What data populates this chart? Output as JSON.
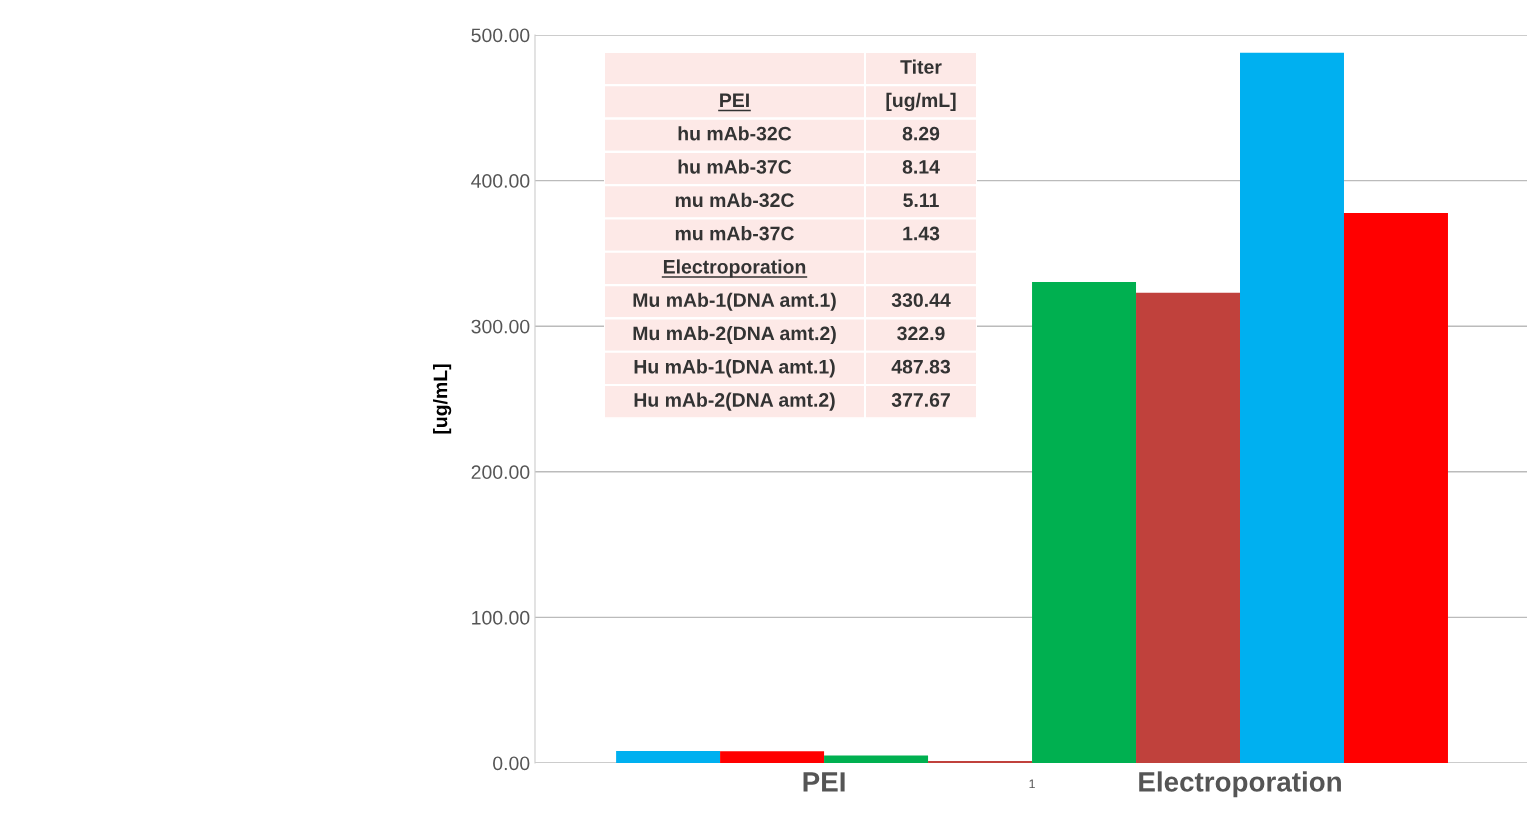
{
  "chart_data": [
    {
      "type": "bar",
      "ylabel": "[ug/mL]",
      "categories": [
        "PEI",
        "Electroporation"
      ],
      "series": [
        {
          "colors": [
            "#00b0f0",
            "#00b050"
          ],
          "values": [
            8.29,
            330.44
          ]
        },
        {
          "colors": [
            "#ff0000",
            "#c0413c"
          ],
          "values": [
            8.14,
            322.9
          ]
        },
        {
          "colors": [
            "#00b050",
            "#00b0f0"
          ],
          "values": [
            5.11,
            487.83
          ]
        },
        {
          "colors": [
            "#c0413c",
            "#ff0000"
          ],
          "values": [
            1.43,
            377.67
          ]
        }
      ],
      "ylim": [
        0,
        500
      ],
      "yticks": [
        {
          "value": 0,
          "label": "0.00"
        },
        {
          "value": 100,
          "label": "100.00"
        },
        {
          "value": 200,
          "label": "200.00"
        },
        {
          "value": 300,
          "label": "300.00"
        },
        {
          "value": 400,
          "label": "400.00"
        },
        {
          "value": 500,
          "label": "500.00"
        }
      ],
      "grid": "y",
      "legend": false,
      "annotations": [
        "1"
      ]
    },
    {
      "type": "other",
      "annotations": [
        "Titer",
        "PEI",
        "[ug/mL]",
        "hu mAb-32C",
        "8.29",
        "hu mAb-37C",
        "8.14",
        "mu mAb-32C",
        "5.11",
        "mu mAb-37C",
        "1.43",
        "Electroporation",
        "Mu mAb-1(DNA amt.1)",
        "330.44",
        "Mu mAb-2(DNA amt.2)",
        "322.9",
        "Hu mAb-1(DNA amt.1)",
        "487.83",
        "Hu mAb-2(DNA amt.2)",
        "377.67"
      ]
    }
  ]
}
